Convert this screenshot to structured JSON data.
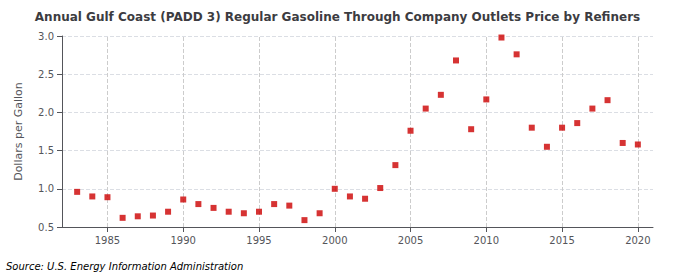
{
  "chart_data": {
    "type": "scatter",
    "title": "Annual Gulf Coast (PADD 3) Regular Gasoline Through Company Outlets Price by Refiners",
    "ylabel": "Dollars per Gallon",
    "annotation": "Source: U.S. Energy Information Administration",
    "x": [
      1983,
      1984,
      1985,
      1986,
      1987,
      1988,
      1989,
      1990,
      1991,
      1992,
      1993,
      1994,
      1995,
      1996,
      1997,
      1998,
      1999,
      2000,
      2001,
      2002,
      2003,
      2004,
      2005,
      2006,
      2007,
      2008,
      2009,
      2010,
      2011,
      2012,
      2013,
      2014,
      2015,
      2016,
      2017,
      2018,
      2019,
      2020
    ],
    "values": [
      0.96,
      0.9,
      0.89,
      0.62,
      0.64,
      0.65,
      0.7,
      0.86,
      0.8,
      0.75,
      0.7,
      0.68,
      0.7,
      0.8,
      0.78,
      0.59,
      0.68,
      1.0,
      0.9,
      0.87,
      1.01,
      1.31,
      1.76,
      2.05,
      2.23,
      2.68,
      1.78,
      2.17,
      2.98,
      2.76,
      1.8,
      1.55,
      1.8,
      1.86,
      2.05,
      2.16,
      1.6,
      1.58
    ],
    "color": "#cc0000",
    "marker": "square",
    "xlim": [
      1982,
      2021
    ],
    "ylim": [
      0.5,
      3.0
    ],
    "xticks": [
      1985,
      1990,
      1995,
      2000,
      2005,
      2010,
      2015,
      2020
    ],
    "yticks": [
      0.5,
      {
        "value": 1,
        "label": "1.0"
      },
      1.5,
      {
        "value": 2,
        "label": "2.0"
      },
      2.5,
      {
        "value": 3,
        "label": "3.0"
      }
    ],
    "grid": true
  }
}
